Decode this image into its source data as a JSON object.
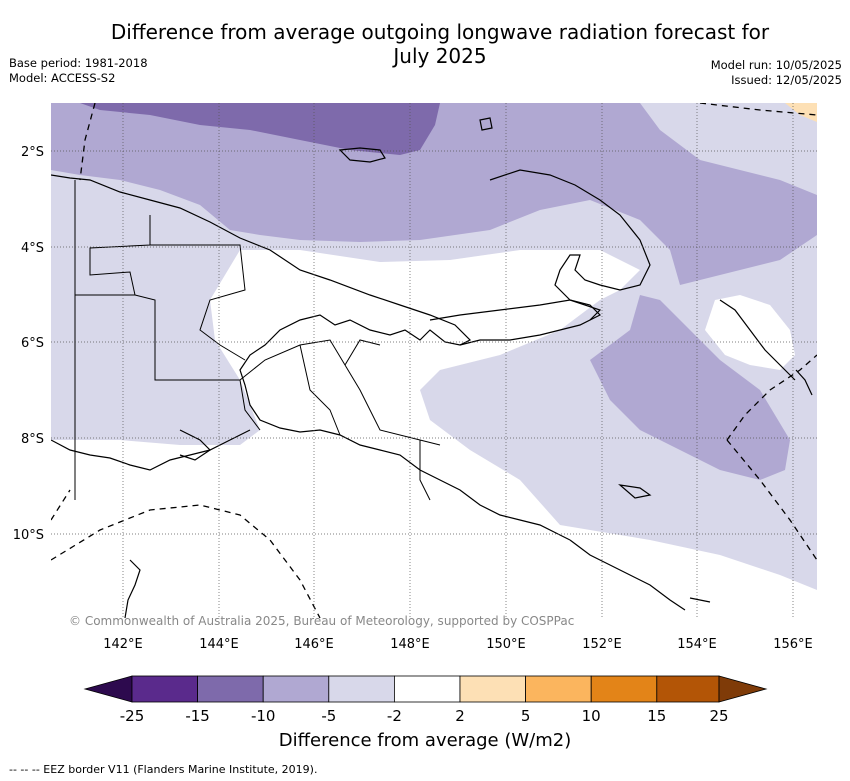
{
  "title": "Difference from average outgoing longwave radiation forecast for July 2025",
  "meta": {
    "base_period": "Base period: 1981-2018",
    "model": "Model: ACCESS-S2",
    "model_run": "Model run: 10/05/2025",
    "issued": "Issued: 12/05/2025"
  },
  "map": {
    "lon_ticks": [
      "142°E",
      "144°E",
      "146°E",
      "148°E",
      "150°E",
      "152°E",
      "154°E",
      "156°E"
    ],
    "lat_ticks": [
      "2°S",
      "4°S",
      "6°S",
      "8°S",
      "10°S"
    ],
    "copyright": "© Commonwealth of Australia 2025, Bureau of Meteorology, supported by COSPPac"
  },
  "colorbar": {
    "labels": [
      "-25",
      "-15",
      "-10",
      "-5",
      "-2",
      "2",
      "5",
      "10",
      "15",
      "25"
    ],
    "colors": [
      "#2d0a4e",
      "#5a2a8c",
      "#7e6aab",
      "#b0a8d2",
      "#d8d8ea",
      "#ffffff",
      "#fde0b5",
      "#fbb55e",
      "#e38418",
      "#b35506",
      "#7f3b08"
    ],
    "title": "Difference from average (W/m2)"
  },
  "legend": {
    "eez": "--  --  -- EEZ border V11 (Flanders Marine Institute, 2019)."
  }
}
